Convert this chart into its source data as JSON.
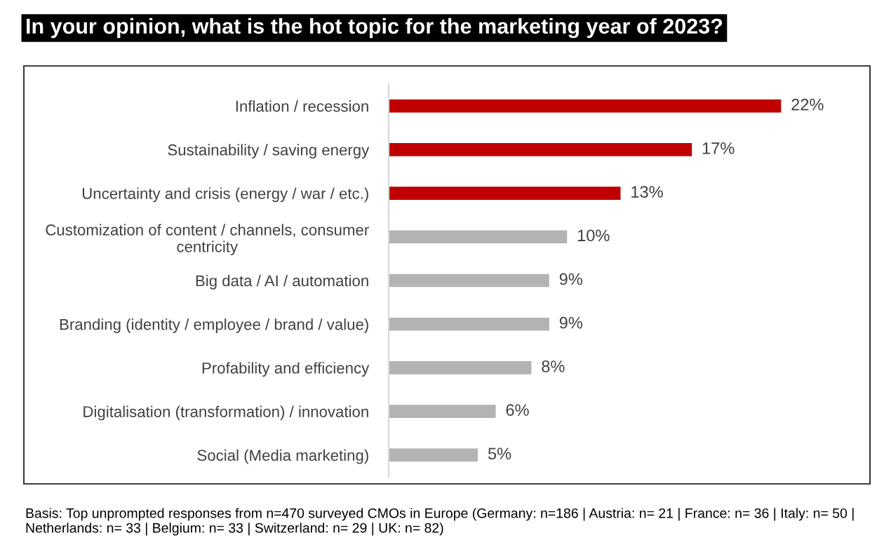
{
  "chart_data": {
    "type": "bar",
    "orientation": "horizontal",
    "title": "In your opinion, what is the hot topic for the marketing year of 2023?",
    "categories": [
      "Inflation / recession",
      "Sustainability / saving energy",
      "Uncertainty and crisis (energy / war / etc.)",
      "Customization of content / channels, consumer\ncentricity",
      "Big data / AI / automation",
      "Branding (identity / employee / brand / value)",
      "Profability and efficiency",
      "Digitalisation (transformation) / innovation",
      "Social (Media marketing)"
    ],
    "values": [
      22,
      17,
      13,
      10,
      9,
      9,
      8,
      6,
      5
    ],
    "colors": [
      "#c00000",
      "#c00000",
      "#c00000",
      "#b3b3b3",
      "#b3b3b3",
      "#b3b3b3",
      "#b3b3b3",
      "#b3b3b3",
      "#b3b3b3"
    ],
    "value_labels": [
      "22%",
      "17%",
      "13%",
      "10%",
      "9%",
      "9%",
      "8%",
      "6%",
      "5%"
    ],
    "annotations": [
      "Basis: Top unprompted responses from n=470 surveyed CMOs in Europe (Germany: n=186 | Austria: n= 21 | France: n= 36 | Italy: n= 50 |\nNetherlands: n= 33 | Belgium: n= 33 | Switzerland: n= 29 | UK: n= 82)"
    ],
    "grid": false,
    "legend": false
  }
}
